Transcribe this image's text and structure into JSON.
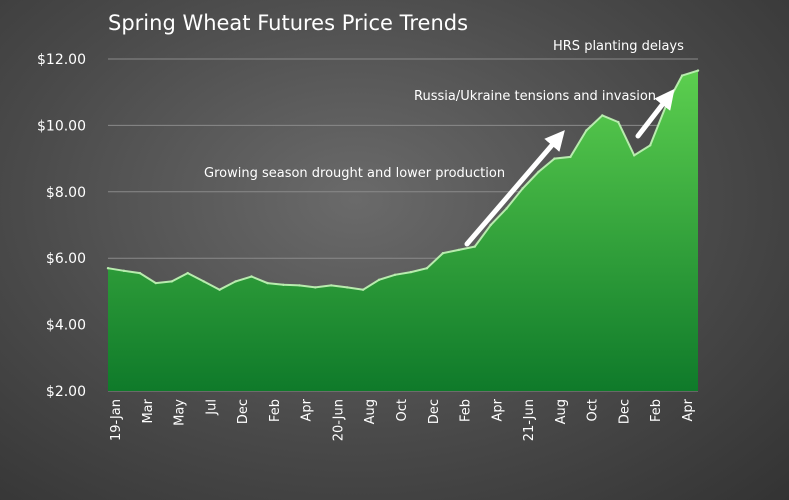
{
  "chart_data": {
    "type": "area",
    "title": "Spring Wheat Futures Price Trends",
    "xlabel": "",
    "ylabel": "",
    "ylim": [
      2,
      12
    ],
    "y_ticks": [
      2,
      4,
      6,
      8,
      10,
      12
    ],
    "y_tick_labels": [
      "$2.00",
      "$4.00",
      "$6.00",
      "$8.00",
      "$10.00",
      "$12.00"
    ],
    "grid": true,
    "legend": "none",
    "colors": {
      "fill_top": "#5ccf4f",
      "fill_bottom": "#0f7a2a",
      "edge": "#b8ecae"
    },
    "x_tick_labels": [
      "19-Jan",
      "Mar",
      "May",
      "Jul",
      "Dec",
      "Feb",
      "Apr",
      "20-Jun",
      "Aug",
      "Oct",
      "Dec",
      "Feb",
      "Apr",
      "21-Jun",
      "Aug",
      "Oct",
      "Dec",
      "Feb",
      "Apr"
    ],
    "series": [
      {
        "values": [
          5.7,
          5.62,
          5.55,
          5.25,
          5.3,
          5.55,
          5.3,
          5.05,
          5.3,
          5.45,
          5.25,
          5.2,
          5.18,
          5.12,
          5.18,
          5.12,
          5.05,
          5.35,
          5.5,
          5.58,
          5.7,
          6.15,
          6.25,
          6.35,
          7.0,
          7.5,
          8.1,
          8.6,
          9.0,
          9.05,
          9.85,
          10.3,
          10.1,
          9.1,
          9.4,
          10.6,
          11.5,
          11.65
        ]
      }
    ],
    "annotations": [
      {
        "text": "Growing season drought and lower production"
      },
      {
        "text": "Russia/Ukraine tensions and invasion"
      },
      {
        "text": "HRS planting delays"
      }
    ]
  }
}
